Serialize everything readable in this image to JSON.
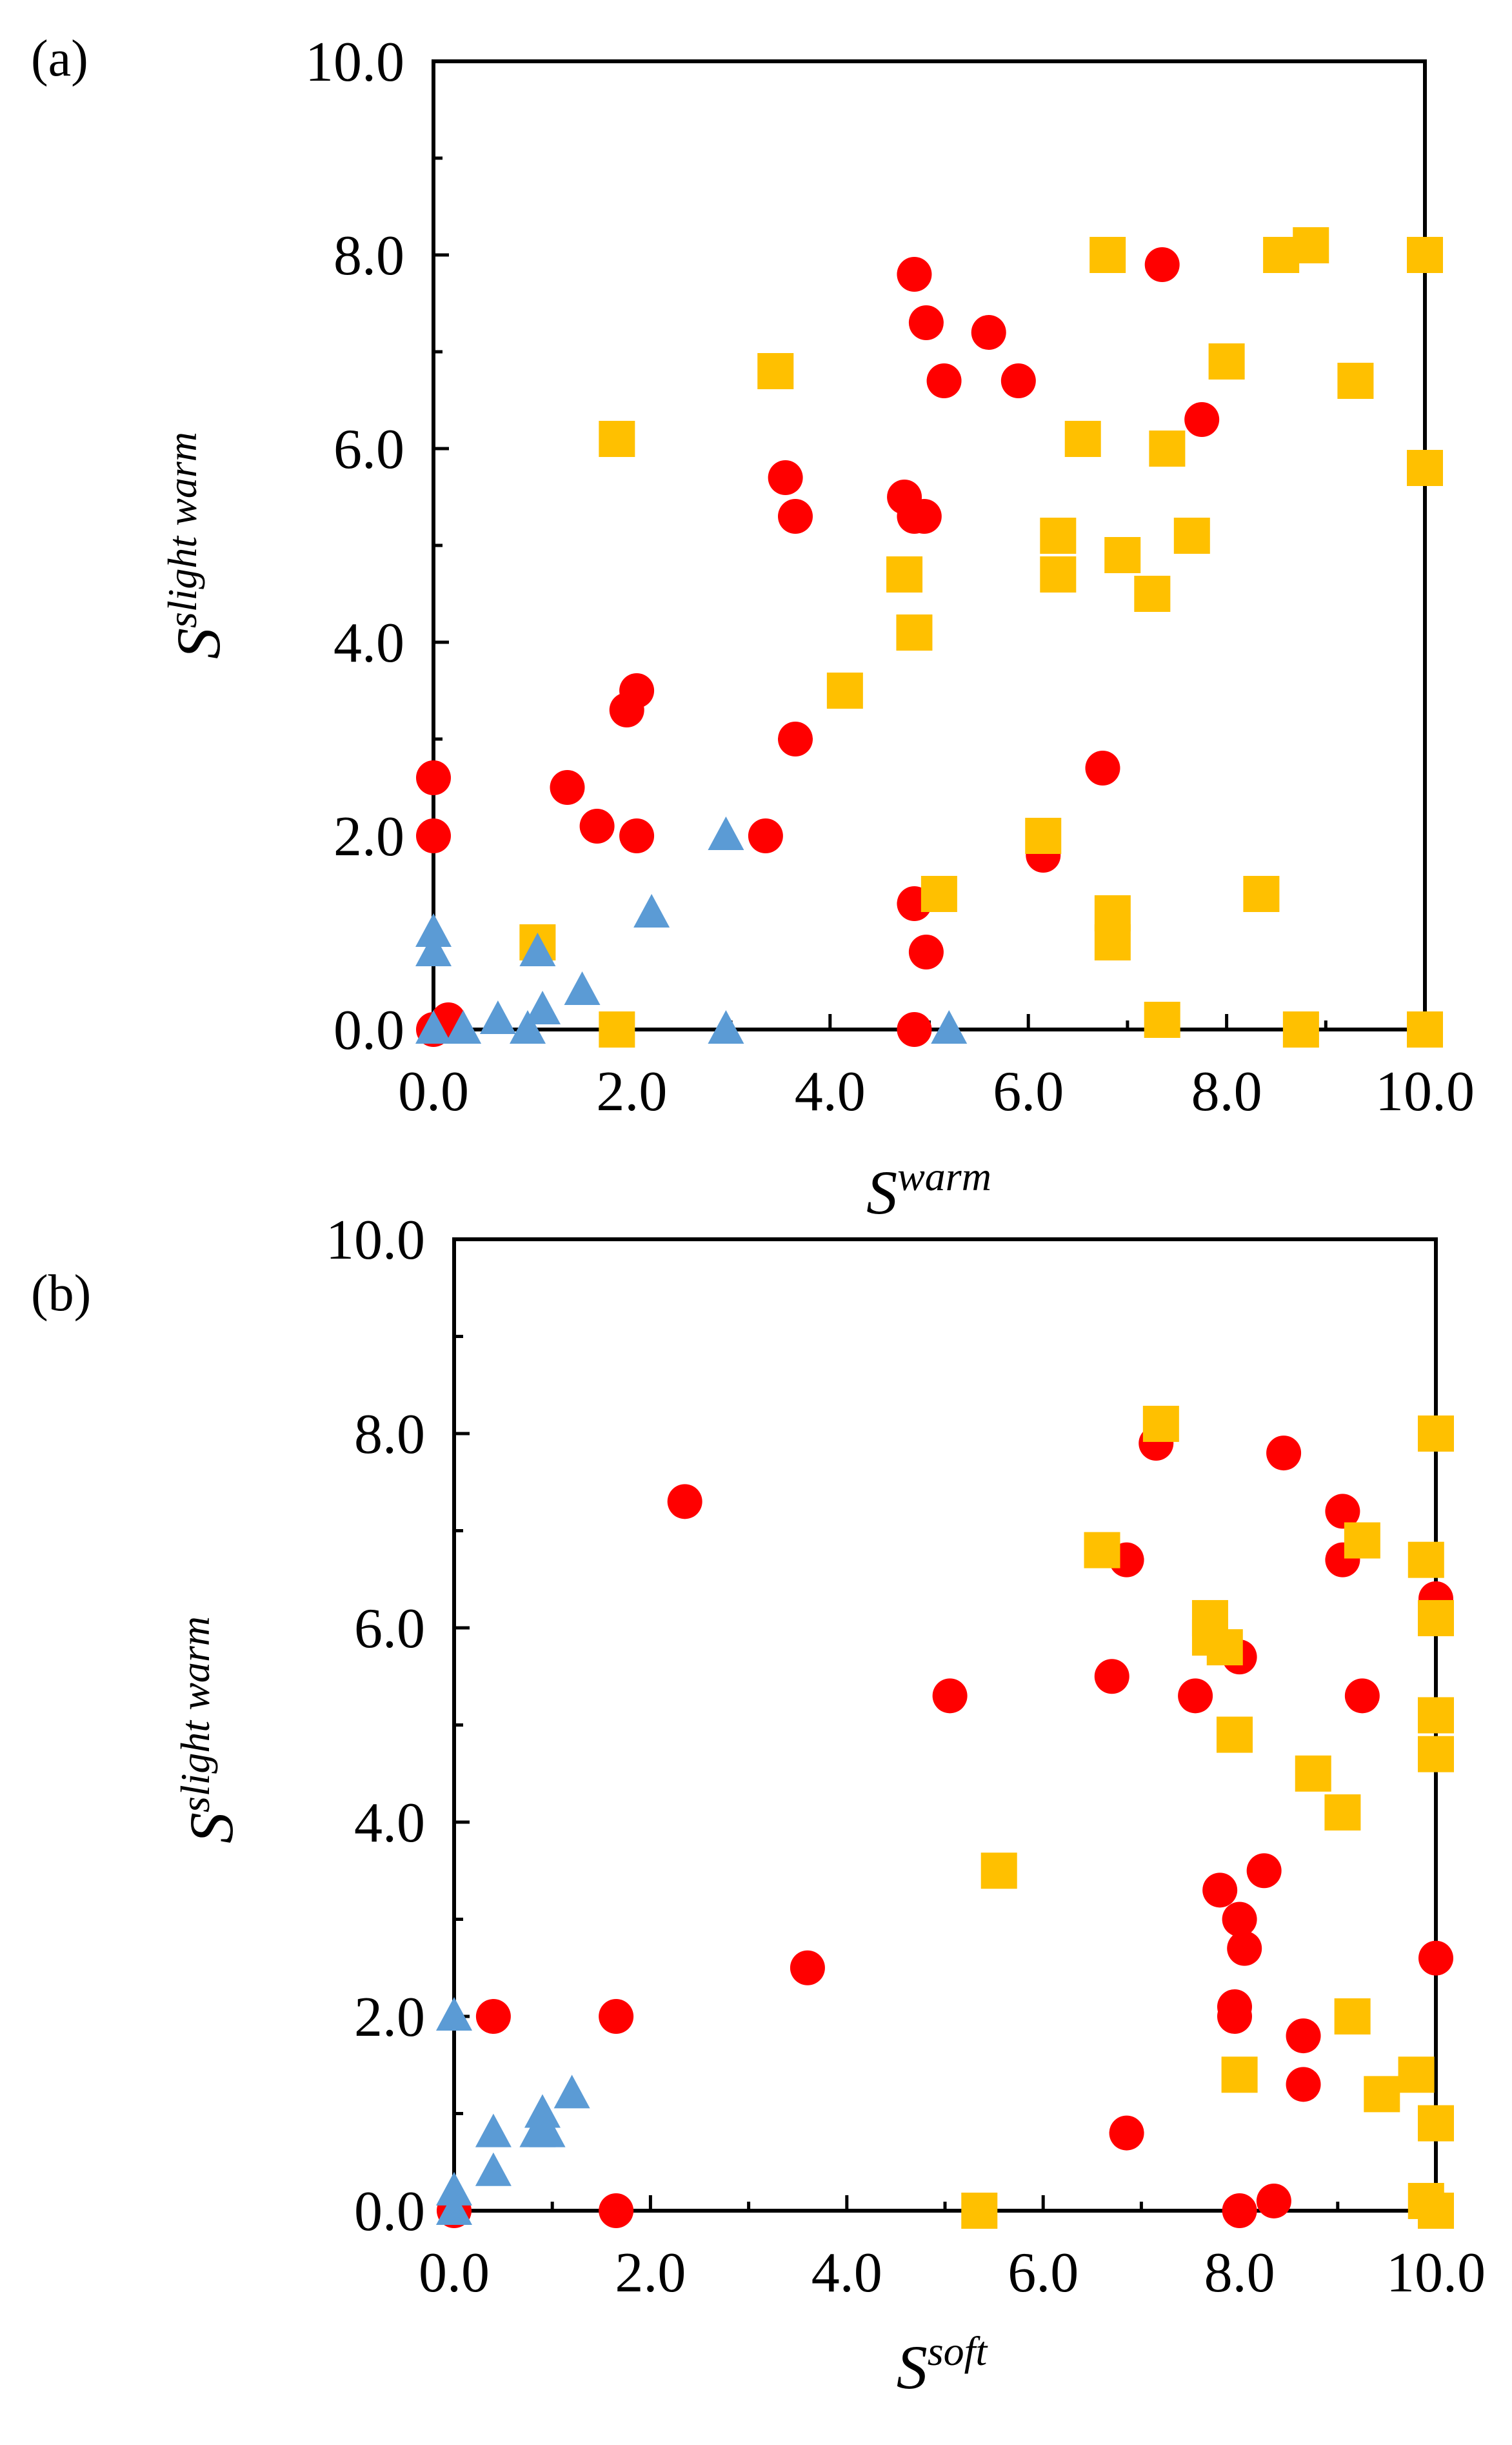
{
  "colors": {
    "circle": "#ff0000",
    "square": "#ffc000",
    "triangle": "#5b9bd5",
    "axis": "#000000"
  },
  "chart_data": [
    {
      "panel": "(a)",
      "type": "scatter",
      "xlabel": {
        "base": "S",
        "sup": "warm"
      },
      "ylabel": {
        "base": "S",
        "sup": "slight warm"
      },
      "xlim": [
        0,
        10
      ],
      "ylim": [
        0,
        10
      ],
      "x_ticks": [
        "0.0",
        "2.0",
        "4.0",
        "6.0",
        "8.0",
        "10.0"
      ],
      "y_ticks": [
        "0.0",
        "2.0",
        "4.0",
        "6.0",
        "8.0",
        "10.0"
      ],
      "series": [
        {
          "name": "circle",
          "marker": "circle",
          "color": "#ff0000",
          "points": [
            [
              4.85,
              7.8
            ],
            [
              7.35,
              7.9
            ],
            [
              4.97,
              7.3
            ],
            [
              5.6,
              7.2
            ],
            [
              5.15,
              6.7
            ],
            [
              5.9,
              6.7
            ],
            [
              7.75,
              6.3
            ],
            [
              3.55,
              5.7
            ],
            [
              4.75,
              5.5
            ],
            [
              3.65,
              5.3
            ],
            [
              4.95,
              5.3
            ],
            [
              4.85,
              5.3
            ],
            [
              2.05,
              3.5
            ],
            [
              1.95,
              3.3
            ],
            [
              3.65,
              3.0
            ],
            [
              0.0,
              2.6
            ],
            [
              6.75,
              2.7
            ],
            [
              1.35,
              2.5
            ],
            [
              1.65,
              2.1
            ],
            [
              0.0,
              2.0
            ],
            [
              2.05,
              2.0
            ],
            [
              3.35,
              2.0
            ],
            [
              6.15,
              1.8
            ],
            [
              4.85,
              1.3
            ],
            [
              4.97,
              0.8
            ],
            [
              0.0,
              0.0
            ],
            [
              0.15,
              0.1
            ],
            [
              4.85,
              0.0
            ]
          ]
        },
        {
          "name": "square",
          "marker": "square",
          "color": "#ffc000",
          "points": [
            [
              6.8,
              8.0
            ],
            [
              8.55,
              8.0
            ],
            [
              8.85,
              8.1
            ],
            [
              10.0,
              8.0
            ],
            [
              3.45,
              6.8
            ],
            [
              8.0,
              6.9
            ],
            [
              9.3,
              6.7
            ],
            [
              1.85,
              6.1
            ],
            [
              6.55,
              6.1
            ],
            [
              7.4,
              6.0
            ],
            [
              10.0,
              5.8
            ],
            [
              6.3,
              5.1
            ],
            [
              7.65,
              5.1
            ],
            [
              6.95,
              4.9
            ],
            [
              6.3,
              4.7
            ],
            [
              4.75,
              4.7
            ],
            [
              7.25,
              4.5
            ],
            [
              4.85,
              4.1
            ],
            [
              4.15,
              3.5
            ],
            [
              6.15,
              2.0
            ],
            [
              5.1,
              1.4
            ],
            [
              8.35,
              1.4
            ],
            [
              6.85,
              1.2
            ],
            [
              6.85,
              0.9
            ],
            [
              1.05,
              0.9
            ],
            [
              1.85,
              0.0
            ],
            [
              7.35,
              0.1
            ],
            [
              8.75,
              0.0
            ],
            [
              10.0,
              0.0
            ]
          ]
        },
        {
          "name": "triangle",
          "marker": "triangle",
          "color": "#5b9bd5",
          "points": [
            [
              0.0,
              1.0
            ],
            [
              0.0,
              0.8
            ],
            [
              0.0,
              0.0
            ],
            [
              0.3,
              0.0
            ],
            [
              0.65,
              0.1
            ],
            [
              0.95,
              0.0
            ],
            [
              1.05,
              0.8
            ],
            [
              1.1,
              0.2
            ],
            [
              1.5,
              0.4
            ],
            [
              2.2,
              1.2
            ],
            [
              2.95,
              2.0
            ],
            [
              2.95,
              0.0
            ],
            [
              5.2,
              0.0
            ]
          ]
        }
      ]
    },
    {
      "panel": "(b)",
      "type": "scatter",
      "xlabel": {
        "base": "S",
        "sup": "soft"
      },
      "ylabel": {
        "base": "S",
        "sup": "slight warm"
      },
      "xlim": [
        0,
        10
      ],
      "ylim": [
        0,
        10
      ],
      "x_ticks": [
        "0.0",
        "2.0",
        "4.0",
        "6.0",
        "8.0",
        "10.0"
      ],
      "y_ticks": [
        "0.0",
        "2.0",
        "4.0",
        "6.0",
        "8.0",
        "10.0"
      ],
      "series": [
        {
          "name": "circle",
          "marker": "circle",
          "color": "#ff0000",
          "points": [
            [
              7.15,
              7.9
            ],
            [
              8.45,
              7.8
            ],
            [
              2.35,
              7.3
            ],
            [
              9.05,
              7.2
            ],
            [
              6.85,
              6.7
            ],
            [
              9.05,
              6.7
            ],
            [
              10.0,
              6.3
            ],
            [
              6.7,
              5.5
            ],
            [
              8.0,
              5.7
            ],
            [
              5.05,
              5.3
            ],
            [
              7.55,
              5.3
            ],
            [
              9.25,
              5.3
            ],
            [
              7.8,
              3.3
            ],
            [
              8.25,
              3.5
            ],
            [
              8.0,
              3.0
            ],
            [
              8.05,
              2.7
            ],
            [
              3.6,
              2.5
            ],
            [
              10.0,
              2.6
            ],
            [
              0.4,
              2.0
            ],
            [
              1.65,
              2.0
            ],
            [
              7.95,
              2.1
            ],
            [
              7.95,
              2.0
            ],
            [
              8.65,
              1.8
            ],
            [
              8.65,
              1.3
            ],
            [
              6.85,
              0.8
            ],
            [
              0.0,
              0.0
            ],
            [
              1.65,
              0.0
            ],
            [
              8.0,
              0.0
            ],
            [
              8.35,
              0.1
            ]
          ]
        },
        {
          "name": "square",
          "marker": "square",
          "color": "#ffc000",
          "points": [
            [
              7.2,
              8.1
            ],
            [
              10.0,
              8.0
            ],
            [
              6.6,
              6.8
            ],
            [
              9.25,
              6.9
            ],
            [
              9.9,
              6.7
            ],
            [
              7.7,
              6.1
            ],
            [
              10.0,
              6.1
            ],
            [
              7.7,
              5.9
            ],
            [
              7.85,
              5.8
            ],
            [
              10.0,
              5.1
            ],
            [
              10.0,
              4.7
            ],
            [
              7.95,
              4.9
            ],
            [
              8.75,
              4.5
            ],
            [
              9.05,
              4.1
            ],
            [
              5.55,
              3.5
            ],
            [
              9.15,
              2.0
            ],
            [
              8.0,
              1.4
            ],
            [
              9.8,
              1.4
            ],
            [
              9.45,
              1.2
            ],
            [
              10.0,
              0.9
            ],
            [
              5.35,
              0.0
            ],
            [
              9.9,
              0.1
            ],
            [
              10.0,
              0.0
            ]
          ]
        },
        {
          "name": "triangle",
          "marker": "triangle",
          "color": "#5b9bd5",
          "points": [
            [
              0.0,
              2.0
            ],
            [
              0.0,
              0.2
            ],
            [
              0.0,
              0.0
            ],
            [
              0.4,
              0.8
            ],
            [
              0.4,
              0.4
            ],
            [
              0.85,
              0.8
            ],
            [
              0.9,
              1.0
            ],
            [
              0.95,
              0.8
            ],
            [
              1.2,
              1.2
            ]
          ]
        }
      ]
    }
  ]
}
